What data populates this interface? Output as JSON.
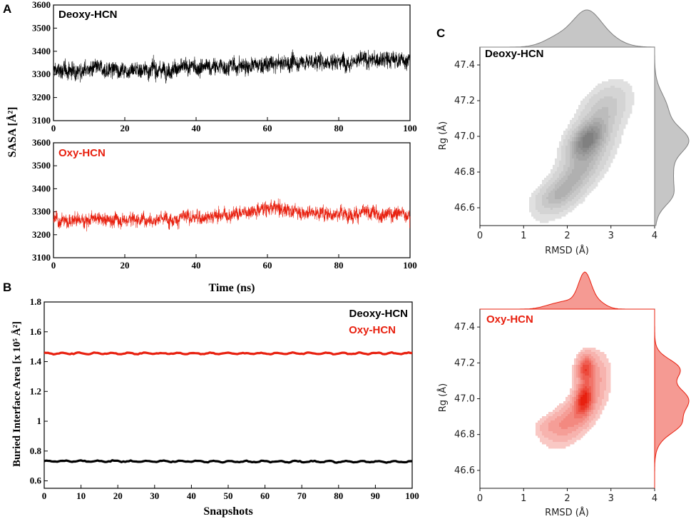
{
  "panels": {
    "a": "A",
    "b": "B",
    "c": "C"
  },
  "colors": {
    "deoxy": "#000000",
    "oxy": "#e8200f",
    "grey_kde": "#808080",
    "red_kde": "#e8200f"
  },
  "chart_data": [
    {
      "id": "sasa-deoxy",
      "type": "line",
      "title": "",
      "label": "Deoxy-HCN",
      "xlabel": "",
      "ylabel": "SASA [Å²]",
      "xlim": [
        0,
        100
      ],
      "ylim": [
        3100,
        3600
      ],
      "xticks": [
        0,
        20,
        40,
        60,
        80,
        100
      ],
      "yticks": [
        3100,
        3200,
        3300,
        3400,
        3500,
        3600
      ],
      "series": [
        {
          "name": "Deoxy-HCN",
          "x": [
            0,
            10,
            20,
            30,
            40,
            50,
            60,
            70,
            80,
            90,
            100
          ],
          "values": [
            3315,
            3320,
            3322,
            3320,
            3330,
            3335,
            3340,
            3355,
            3358,
            3362,
            3365
          ],
          "noise": 55
        }
      ]
    },
    {
      "id": "sasa-oxy",
      "type": "line",
      "label": "Oxy-HCN",
      "xlabel": "Time (ns)",
      "ylabel": "",
      "xlim": [
        0,
        100
      ],
      "ylim": [
        3100,
        3600
      ],
      "xticks": [
        0,
        20,
        40,
        60,
        80,
        100
      ],
      "yticks": [
        3100,
        3200,
        3300,
        3400,
        3500,
        3600
      ],
      "series": [
        {
          "name": "Oxy-HCN",
          "x": [
            0,
            10,
            20,
            30,
            40,
            50,
            60,
            70,
            80,
            90,
            100
          ],
          "values": [
            3262,
            3265,
            3268,
            3270,
            3275,
            3290,
            3318,
            3300,
            3292,
            3292,
            3292
          ],
          "noise": 45
        }
      ]
    },
    {
      "id": "buried",
      "type": "line",
      "xlabel": "Snapshots",
      "ylabel": "Buried Interface Area [x 10⁵ Å²]",
      "xlim": [
        0,
        100
      ],
      "ylim": [
        0.55,
        1.8
      ],
      "xticks": [
        0,
        10,
        20,
        30,
        40,
        50,
        60,
        70,
        80,
        90,
        100
      ],
      "yticks": [
        0.6,
        0.8,
        1,
        1.2,
        1.4,
        1.6,
        1.8
      ],
      "ytick_labels": [
        "0.6",
        "0.8",
        "1",
        "1.2",
        "1.4",
        "1.6",
        "1.8"
      ],
      "legend": {
        "position": "top-right",
        "entries": [
          "Deoxy-HCN",
          "Oxy-HCN"
        ]
      },
      "series": [
        {
          "name": "Deoxy-HCN",
          "values": [
            0.732,
            0.728
          ],
          "noise": 0.006
        },
        {
          "name": "Oxy-HCN",
          "values": [
            1.455,
            1.455
          ],
          "noise": 0.006
        }
      ]
    },
    {
      "id": "kde-deoxy",
      "type": "heatmap",
      "label": "Deoxy-HCN",
      "xlabel": "RMSD (Å)",
      "ylabel": "Rg (Å)",
      "xlim": [
        0,
        4
      ],
      "ylim": [
        46.5,
        47.5
      ],
      "xticks": [
        0,
        1,
        2,
        3,
        4
      ],
      "yticks": [
        46.6,
        46.8,
        47.0,
        47.2,
        47.4
      ],
      "ytick_labels": [
        "46.6",
        "46.8",
        "47.0",
        "47.2",
        "47.4"
      ],
      "components": [
        {
          "mx": 2.45,
          "my": 46.98,
          "sx": 0.28,
          "sy": 0.07,
          "rho": 0.45,
          "w": 1.0
        },
        {
          "mx": 2.2,
          "my": 46.78,
          "sx": 0.45,
          "sy": 0.12,
          "rho": 0.75,
          "w": 0.55
        },
        {
          "mx": 2.85,
          "my": 47.15,
          "sx": 0.35,
          "sy": 0.09,
          "rho": 0.4,
          "w": 0.35
        },
        {
          "mx": 1.7,
          "my": 46.66,
          "sx": 0.3,
          "sy": 0.05,
          "rho": 0.3,
          "w": 0.22
        }
      ]
    },
    {
      "id": "kde-oxy",
      "type": "heatmap",
      "label": "Oxy-HCN",
      "xlabel": "RMSD (Å)",
      "ylabel": "Rg (Å)",
      "xlim": [
        0,
        4
      ],
      "ylim": [
        46.5,
        47.5
      ],
      "xticks": [
        0,
        1,
        2,
        3,
        4
      ],
      "yticks": [
        46.6,
        46.8,
        47.0,
        47.2,
        47.4
      ],
      "ytick_labels": [
        "46.6",
        "46.8",
        "47.0",
        "47.2",
        "47.4"
      ],
      "components": [
        {
          "mx": 2.38,
          "my": 47.0,
          "sx": 0.14,
          "sy": 0.06,
          "rho": 0.2,
          "w": 1.0
        },
        {
          "mx": 2.42,
          "my": 47.17,
          "sx": 0.13,
          "sy": 0.05,
          "rho": 0.1,
          "w": 0.85
        },
        {
          "mx": 2.1,
          "my": 46.88,
          "sx": 0.33,
          "sy": 0.08,
          "rho": 0.55,
          "w": 0.45
        },
        {
          "mx": 2.65,
          "my": 47.1,
          "sx": 0.2,
          "sy": 0.09,
          "rho": 0.2,
          "w": 0.3
        },
        {
          "mx": 1.6,
          "my": 46.85,
          "sx": 0.22,
          "sy": 0.04,
          "rho": 0.3,
          "w": 0.18
        }
      ]
    }
  ]
}
